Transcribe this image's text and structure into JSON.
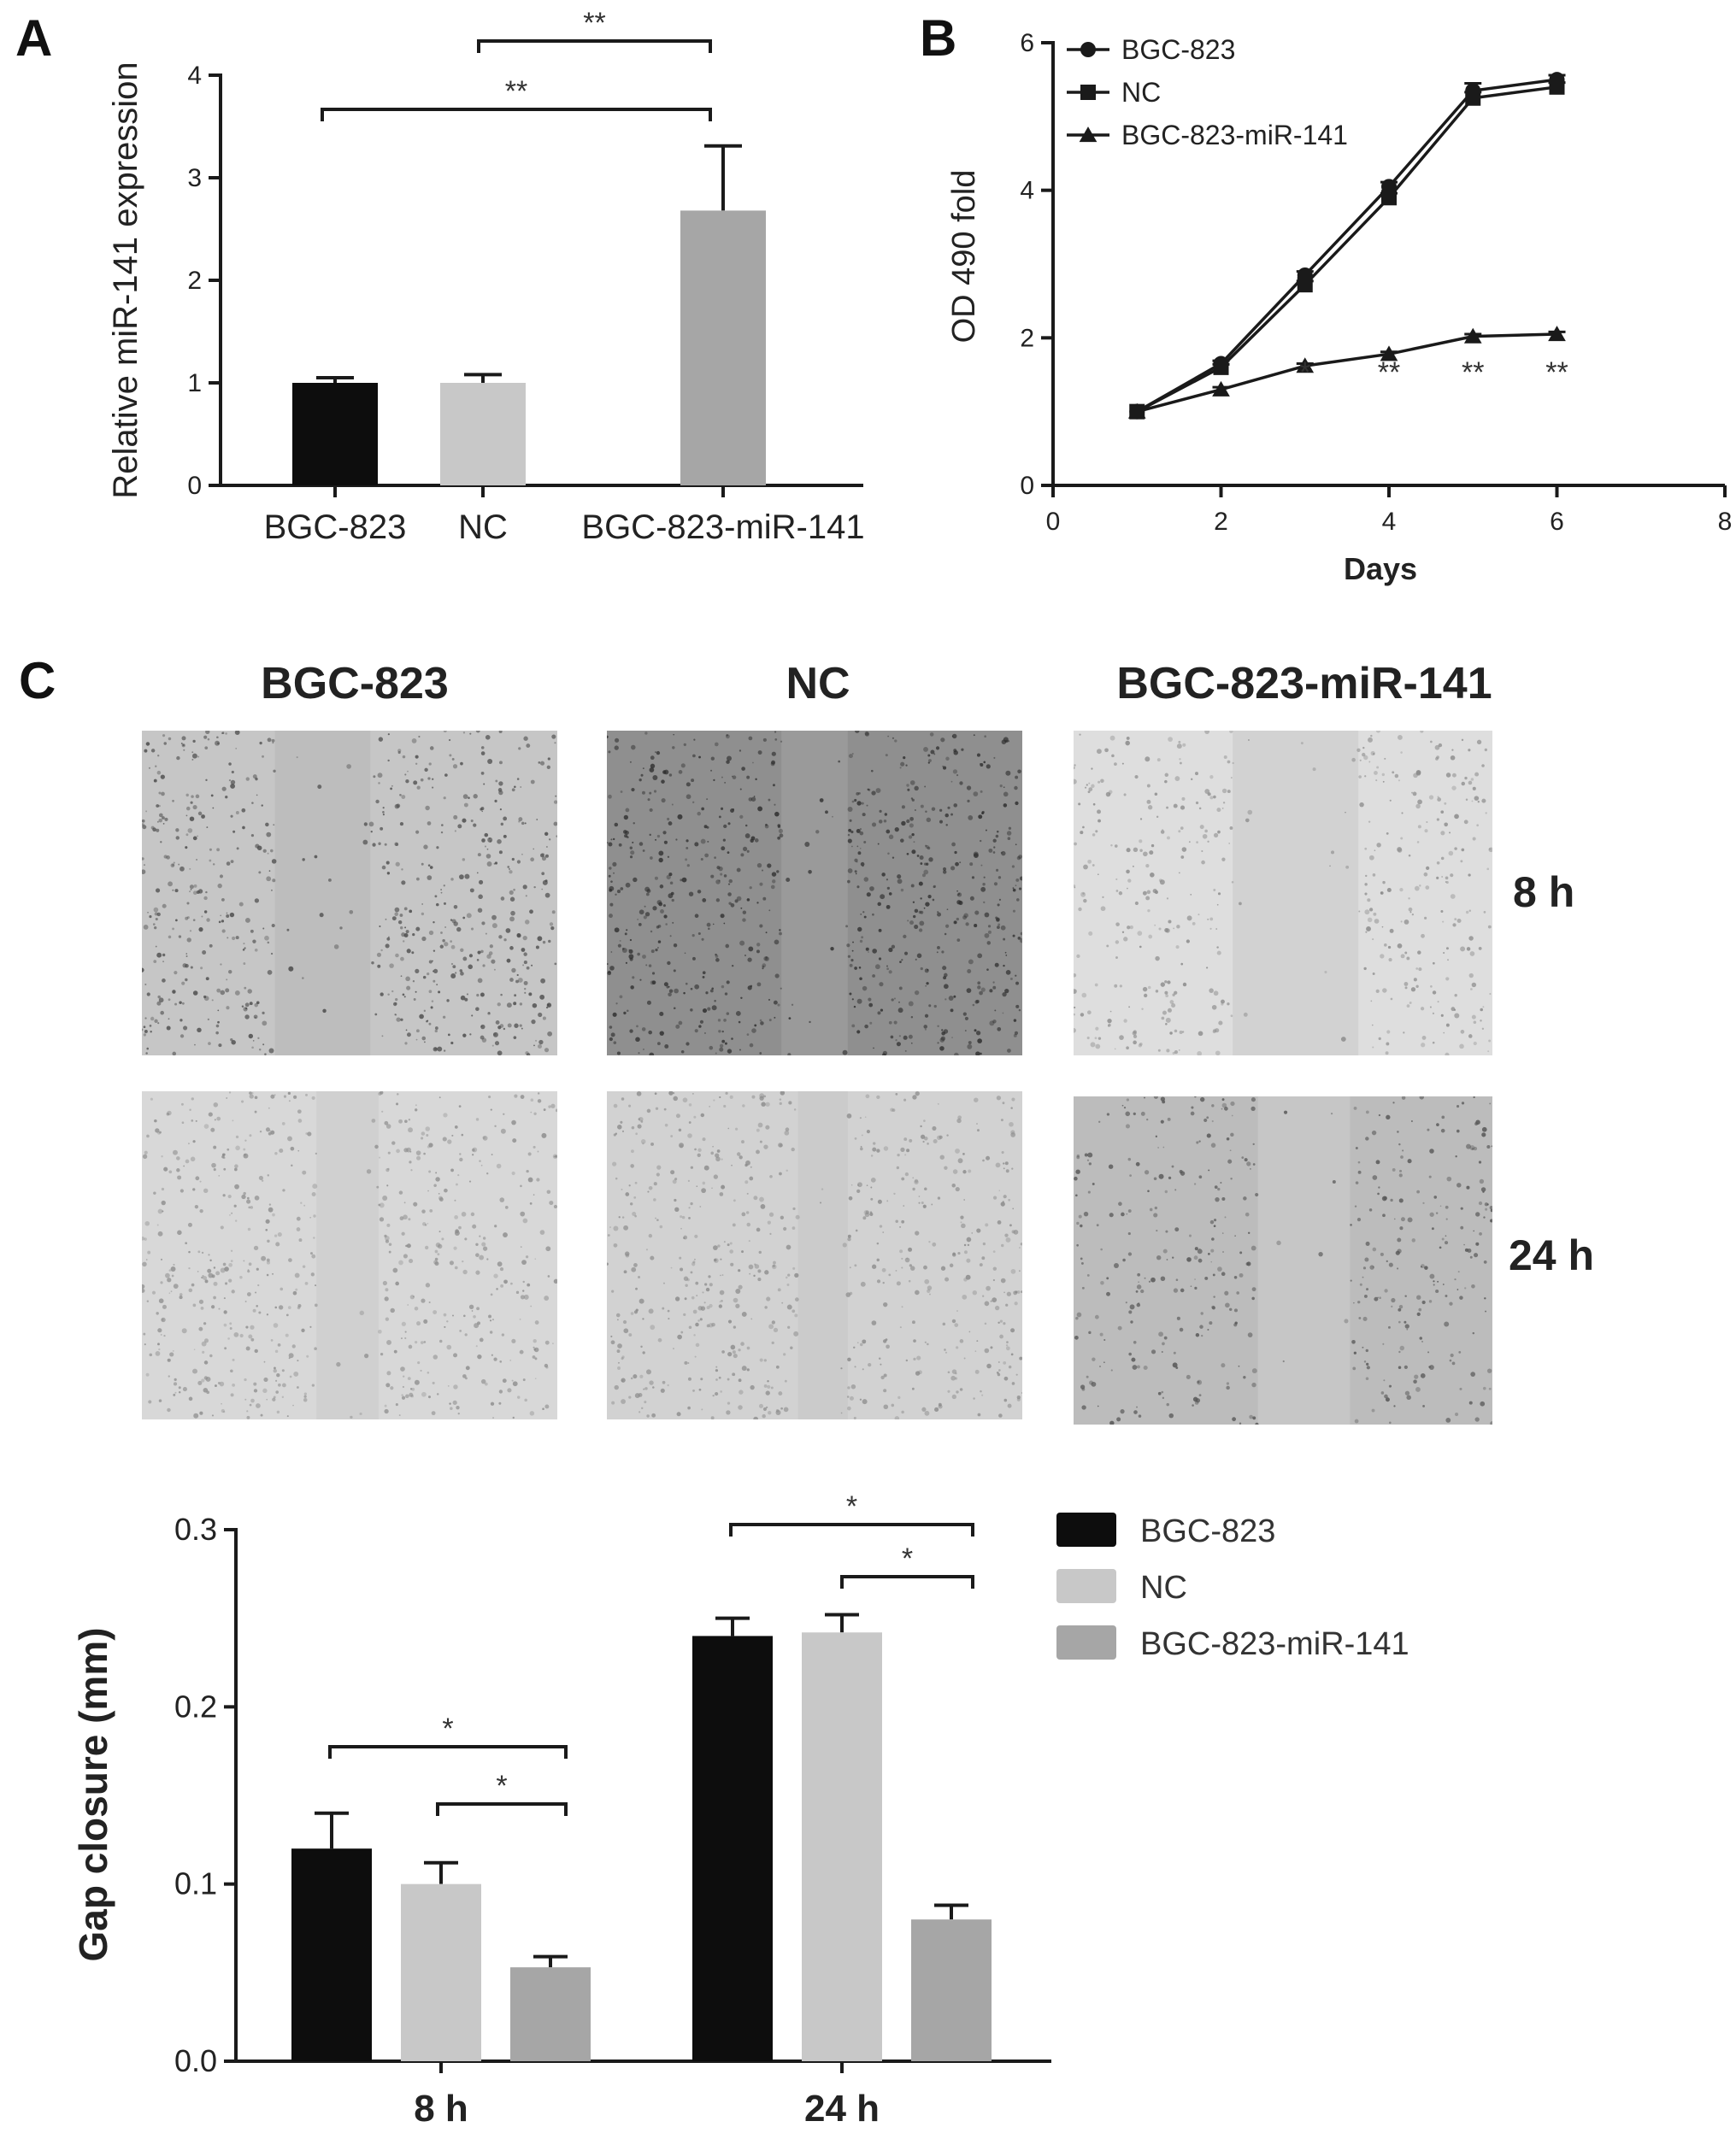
{
  "panels": {
    "A": {
      "letter": "A"
    },
    "B": {
      "letter": "B"
    },
    "C": {
      "letter": "C",
      "columns": [
        "BGC-823",
        "NC",
        "BGC-823-miR-141"
      ],
      "rows": [
        "8 h",
        "24 h"
      ]
    }
  },
  "colors": {
    "bgc823": "#0d0d0d",
    "nc": "#c8c8c8",
    "mir141": "#a6a6a6",
    "axis": "#1a1a1a"
  },
  "chart_data": [
    {
      "id": "A",
      "type": "bar",
      "categories": [
        "BGC-823",
        "NC",
        "BGC-823-miR-141"
      ],
      "values": [
        1.0,
        1.0,
        2.68
      ],
      "errors": [
        0.05,
        0.08,
        0.63
      ],
      "colors": [
        "#0d0d0d",
        "#c8c8c8",
        "#a6a6a6"
      ],
      "ylabel": "Relative miR-141 expression",
      "xlabel": "",
      "ylim": [
        0,
        4
      ],
      "yticks": [
        "0",
        "1",
        "2",
        "3",
        "4"
      ],
      "significance": [
        {
          "from": 1,
          "to": 2,
          "label": "**"
        },
        {
          "from": 0,
          "to": 2,
          "label": "**"
        }
      ]
    },
    {
      "id": "B",
      "type": "line",
      "xlabel": "Days",
      "ylabel": "OD 490 fold",
      "xlim": [
        0,
        8
      ],
      "ylim": [
        0,
        6
      ],
      "xticks": [
        "0",
        "2",
        "4",
        "6",
        "8"
      ],
      "yticks": [
        "0",
        "2",
        "4",
        "6"
      ],
      "legend_position": "top-left",
      "series": [
        {
          "name": "BGC-823",
          "marker": "circle",
          "x": [
            1,
            2,
            3,
            4,
            5,
            6
          ],
          "y": [
            1.0,
            1.65,
            2.85,
            4.05,
            5.35,
            5.5
          ],
          "errors": [
            0,
            0.04,
            0.05,
            0.06,
            0.1,
            0.06
          ]
        },
        {
          "name": "NC",
          "marker": "square",
          "x": [
            1,
            2,
            3,
            4,
            5,
            6
          ],
          "y": [
            1.0,
            1.6,
            2.72,
            3.9,
            5.25,
            5.4
          ],
          "errors": [
            0,
            0.04,
            0.05,
            0.06,
            0.08,
            0.06
          ]
        },
        {
          "name": "BGC-823-miR-141",
          "marker": "triangle",
          "x": [
            1,
            2,
            3,
            4,
            5,
            6
          ],
          "y": [
            1.0,
            1.3,
            1.62,
            1.78,
            2.02,
            2.05
          ],
          "errors": [
            0,
            0.03,
            0.03,
            0.03,
            0.03,
            0.03
          ]
        }
      ],
      "annotations": [
        {
          "x": 3,
          "label": "*"
        },
        {
          "x": 4,
          "label": "**"
        },
        {
          "x": 5,
          "label": "**"
        },
        {
          "x": 6,
          "label": "**"
        }
      ]
    },
    {
      "id": "C",
      "type": "bar",
      "categories": [
        "8 h",
        "24 h"
      ],
      "ylabel": "Gap closure (mm)",
      "xlabel": "",
      "ylim": [
        0,
        0.3
      ],
      "yticks": [
        "0.0",
        "0.1",
        "0.2",
        "0.3"
      ],
      "legend_position": "top-right",
      "series": [
        {
          "name": "BGC-823",
          "values": [
            0.12,
            0.24
          ],
          "errors": [
            0.02,
            0.01
          ],
          "color": "#0d0d0d"
        },
        {
          "name": "NC",
          "values": [
            0.1,
            0.242
          ],
          "errors": [
            0.012,
            0.01
          ],
          "color": "#c8c8c8"
        },
        {
          "name": "BGC-823-miR-141",
          "values": [
            0.053,
            0.08
          ],
          "errors": [
            0.006,
            0.008
          ],
          "color": "#a6a6a6"
        }
      ],
      "significance": [
        {
          "group": 0,
          "from": 0,
          "to": 2,
          "label": "*"
        },
        {
          "group": 0,
          "from": 1,
          "to": 2,
          "label": "*"
        },
        {
          "group": 1,
          "from": 0,
          "to": 2,
          "label": "*"
        },
        {
          "group": 1,
          "from": 1,
          "to": 2,
          "label": "*"
        }
      ]
    }
  ]
}
